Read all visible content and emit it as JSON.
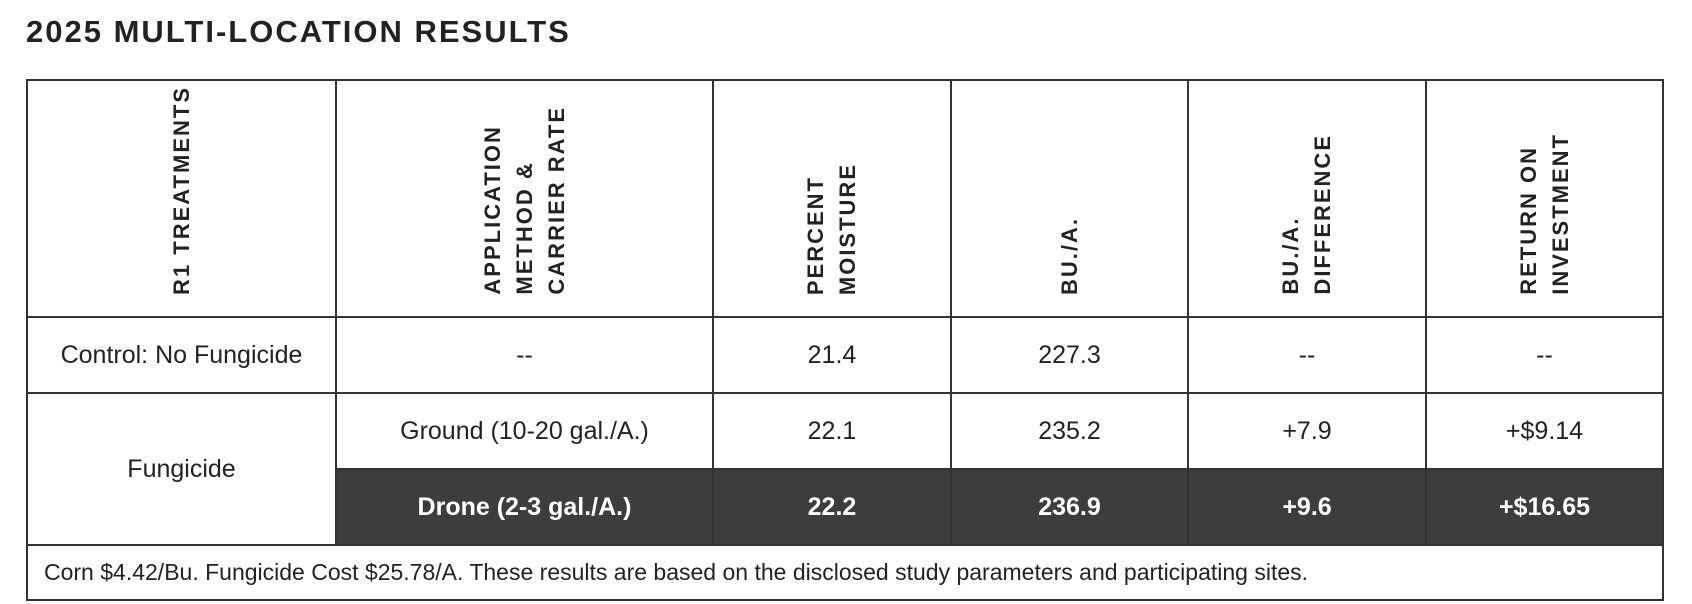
{
  "title": "2025 MULTI-LOCATION RESULTS",
  "table": {
    "headers": [
      [
        "R1 TREATMENTS"
      ],
      [
        "APPLICATION",
        "METHOD &",
        "CARRIER RATE"
      ],
      [
        "PERCENT",
        "MOISTURE"
      ],
      [
        "BU./A."
      ],
      [
        "BU./A.",
        "DIFFERENCE"
      ],
      [
        "RETURN ON",
        "INVESTMENT"
      ]
    ],
    "rows": [
      [
        "Control: No Fungicide",
        "--",
        "21.4",
        "227.3",
        "--",
        "--"
      ],
      [
        "Fungicide",
        "Ground (10-20 gal./A.)",
        "22.1",
        "235.2",
        "+7.9",
        "+$9.14"
      ],
      [
        "Drone (2-3 gal./A.)",
        "22.2",
        "236.9",
        "+9.6",
        "+$16.65"
      ]
    ],
    "note": "Corn $4.42/Bu. Fungicide Cost $25.78/A. These results are based on the disclosed study parameters and participating sites."
  }
}
